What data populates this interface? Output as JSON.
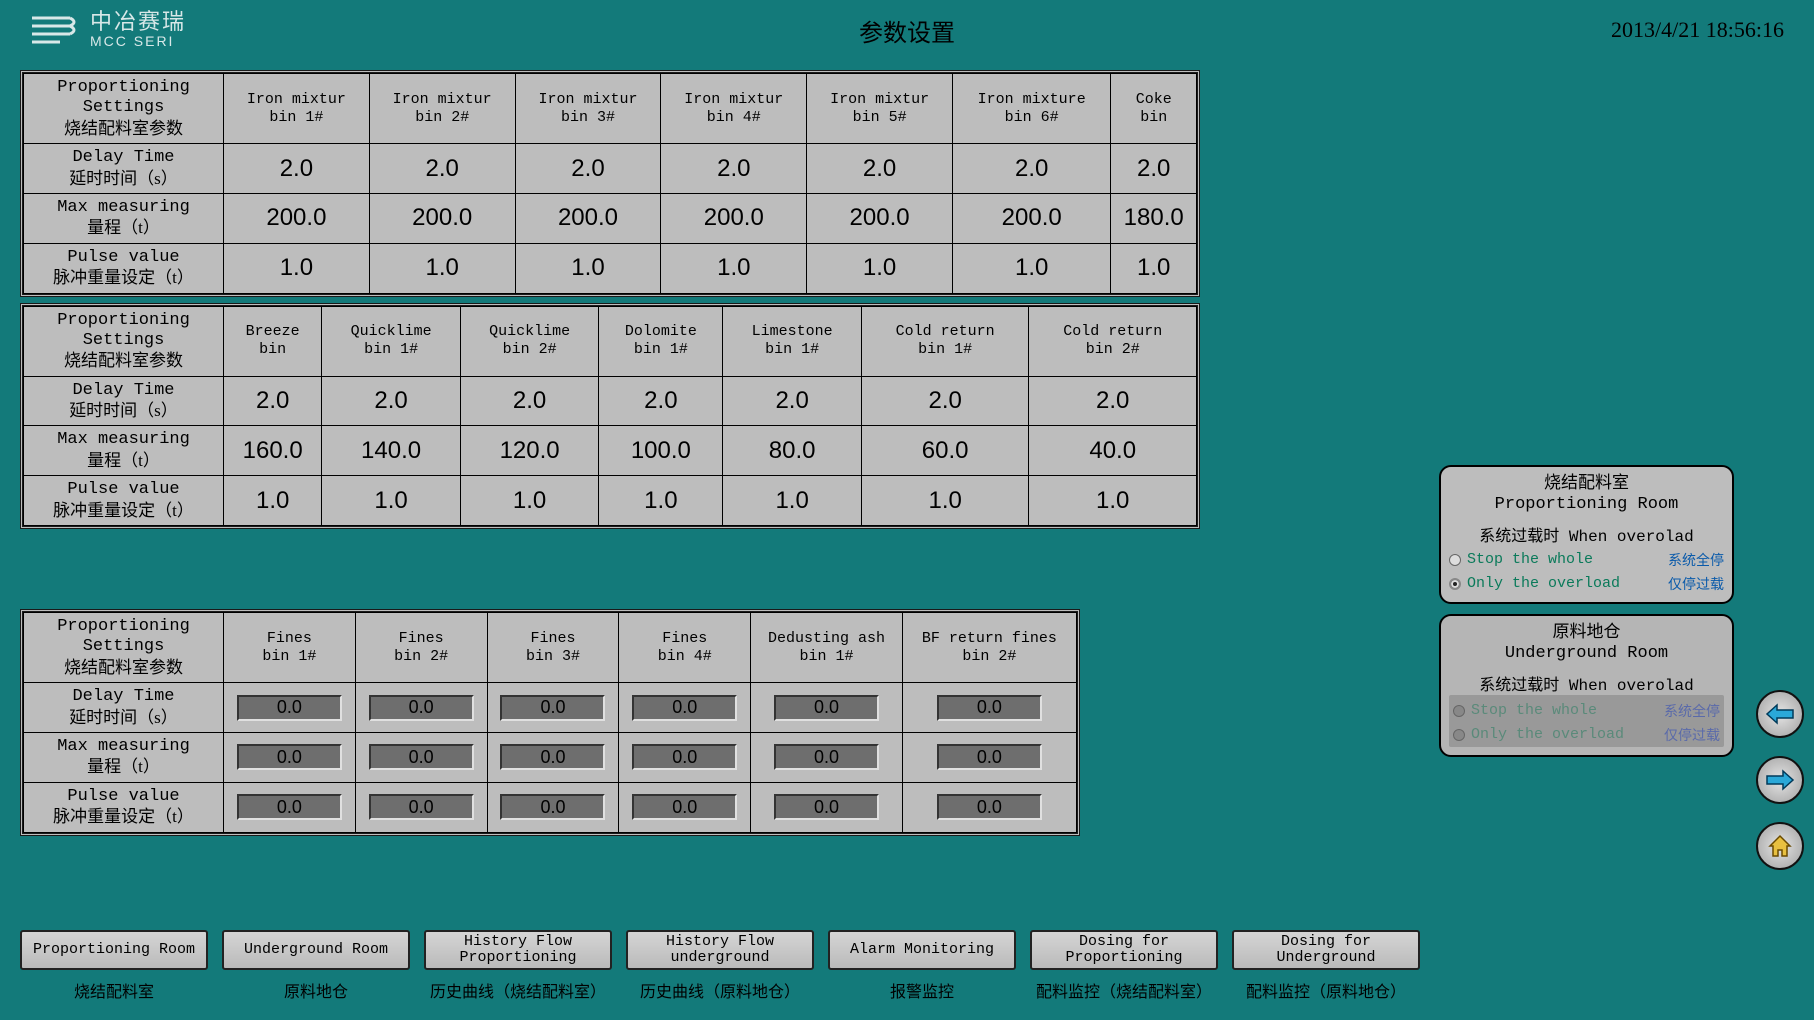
{
  "header": {
    "logo_cn": "中冶赛瑞",
    "logo_en": "MCC SERI",
    "title": "参数设置",
    "timestamp": "2013/4/21 18:56:16"
  },
  "rowheads": {
    "prop_en": "Proportioning Settings",
    "prop_cn": "烧结配料室参数",
    "delay_en": "Delay Time",
    "delay_cn": "延时时间（s）",
    "max_en": "Max measuring",
    "max_cn": "量程（t）",
    "pulse_en": "Pulse value",
    "pulse_cn": "脉冲重量设定（t）"
  },
  "table1": {
    "cols": [
      "Iron mixtur bin 1#",
      "Iron mixtur bin 2#",
      "Iron mixtur bin 3#",
      "Iron mixtur bin 4#",
      "Iron mixtur bin 5#",
      "Iron mixture bin 6#",
      "Coke bin"
    ],
    "delay": [
      "2.0",
      "2.0",
      "2.0",
      "2.0",
      "2.0",
      "2.0",
      "2.0"
    ],
    "max": [
      "200.0",
      "200.0",
      "200.0",
      "200.0",
      "200.0",
      "200.0",
      "180.0"
    ],
    "pulse": [
      "1.0",
      "1.0",
      "1.0",
      "1.0",
      "1.0",
      "1.0",
      "1.0"
    ]
  },
  "table2": {
    "cols": [
      "Breeze bin",
      "Quicklime bin 1#",
      "Quicklime bin 2#",
      "Dolomite bin 1#",
      "Limestone bin 1#",
      "Cold return bin 1#",
      "Cold return bin 2#"
    ],
    "delay": [
      "2.0",
      "2.0",
      "2.0",
      "2.0",
      "2.0",
      "2.0",
      "2.0"
    ],
    "max": [
      "160.0",
      "140.0",
      "120.0",
      "100.0",
      "80.0",
      "60.0",
      "40.0"
    ],
    "pulse": [
      "1.0",
      "1.0",
      "1.0",
      "1.0",
      "1.0",
      "1.0",
      "1.0"
    ]
  },
  "table3": {
    "cols": [
      "Fines bin 1#",
      "Fines bin 2#",
      "Fines bin 3#",
      "Fines bin 4#",
      "Dedusting ash bin 1#",
      "BF return fines bin 2#"
    ],
    "delay": [
      "0.0",
      "0.0",
      "0.0",
      "0.0",
      "0.0",
      "0.0"
    ],
    "max": [
      "0.0",
      "0.0",
      "0.0",
      "0.0",
      "0.0",
      "0.0"
    ],
    "pulse": [
      "0.0",
      "0.0",
      "0.0",
      "0.0",
      "0.0",
      "0.0"
    ]
  },
  "panel1": {
    "title_cn": "烧结配料室",
    "title_en": "Proportioning Room",
    "sub": "系统过载时 When overolad",
    "opt1_en": "Stop the whole",
    "opt1_cn": "系统全停",
    "opt2_en": "Only the overload",
    "opt2_cn": "仅停过载",
    "selected": 2
  },
  "panel2": {
    "title_cn": "原料地仓",
    "title_en": "Underground Room",
    "sub": "系统过载时 When overolad",
    "opt1_en": "Stop the whole",
    "opt1_cn": "系统全停",
    "opt2_en": "Only the overload",
    "opt2_cn": "仅停过载"
  },
  "nav": {
    "btns": [
      "Proportioning Room",
      "Underground Room",
      "History Flow Proportioning",
      "History Flow underground",
      "Alarm Monitoring",
      "Dosing for Proportioning",
      "Dosing for Underground"
    ],
    "labels": [
      "烧结配料室",
      "原料地仓",
      "历史曲线（烧结配料室）",
      "历史曲线（原料地仓）",
      "报警监控",
      "配料监控（烧结配料室）",
      "配料监控（原料地仓）"
    ]
  },
  "colors": {
    "bg": "#137a7a",
    "panel": "#bdbdbd",
    "input": "#6e6e6e",
    "accent_green": "#0a7a5a",
    "accent_blue": "#0a5aaa"
  }
}
